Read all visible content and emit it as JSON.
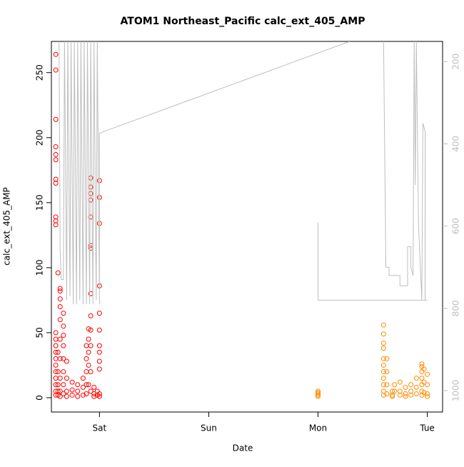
{
  "chart_data": {
    "type": "scatter",
    "title": "ATOM1 Northeast_Pacific calc_ext_405_AMP",
    "x_label": "Date",
    "y_label": "calc_ext_405_AMP",
    "xlim": [
      -0.44,
      3.14
    ],
    "xticks": [
      {
        "value": 0,
        "label": "Sat"
      },
      {
        "value": 1,
        "label": "Sun"
      },
      {
        "value": 2,
        "label": "Mon"
      },
      {
        "value": 3,
        "label": "Tue"
      }
    ],
    "ylim": [
      -11,
      274
    ],
    "yticks": [
      0,
      50,
      100,
      150,
      200,
      250
    ],
    "y2lim": [
      1052,
      151
    ],
    "y2ticks": [
      200,
      400,
      600,
      800,
      1000
    ],
    "series": [
      {
        "color": "#ff0000",
        "x": [
          -0.4,
          -0.4,
          -0.4,
          -0.4,
          -0.4,
          -0.4,
          -0.4,
          -0.4,
          -0.4,
          -0.4,
          -0.4,
          -0.4,
          -0.4,
          -0.4,
          -0.4,
          -0.4,
          -0.4,
          -0.4,
          -0.4,
          -0.4,
          -0.4,
          -0.4,
          -0.38,
          -0.38,
          -0.38,
          -0.38,
          -0.38,
          -0.38,
          -0.36,
          -0.36,
          -0.36,
          -0.36,
          -0.36,
          -0.36,
          -0.36,
          -0.36,
          -0.36,
          -0.36,
          -0.33,
          -0.33,
          -0.33,
          -0.33,
          -0.33,
          -0.33,
          -0.33,
          -0.33,
          -0.3,
          -0.3,
          -0.3,
          -0.3,
          -0.25,
          -0.25,
          -0.25,
          -0.2,
          -0.2,
          -0.2,
          -0.15,
          -0.15,
          -0.15,
          -0.12,
          -0.12,
          -0.12,
          -0.12,
          -0.12,
          -0.1,
          -0.1,
          -0.1,
          -0.1,
          -0.1,
          -0.08,
          -0.08,
          -0.08,
          -0.08,
          -0.08,
          -0.08,
          -0.08,
          -0.08,
          -0.08,
          -0.08,
          -0.08,
          -0.08,
          -0.08,
          -0.05,
          -0.05,
          -0.05,
          -0.02,
          -0.02,
          0,
          0,
          0,
          0,
          0,
          0,
          0,
          0,
          0,
          0,
          0,
          0
        ],
        "values": [
          264,
          252,
          214,
          193,
          187,
          183,
          168,
          165,
          139,
          136,
          133,
          40,
          35,
          30,
          25,
          20,
          15,
          10,
          5,
          2,
          50,
          45,
          96,
          35,
          20,
          10,
          5,
          2,
          84,
          82,
          76,
          70,
          60,
          45,
          30,
          15,
          5,
          1,
          65,
          55,
          48,
          40,
          30,
          20,
          10,
          3,
          28,
          15,
          5,
          1,
          12,
          6,
          2,
          10,
          5,
          1,
          15,
          8,
          2,
          40,
          30,
          20,
          10,
          3,
          53,
          45,
          35,
          25,
          10,
          169,
          162,
          157,
          152,
          139,
          117,
          115,
          80,
          63,
          52,
          40,
          20,
          5,
          8,
          3,
          1,
          5,
          2,
          167,
          154,
          134,
          86,
          65,
          52,
          40,
          35,
          28,
          22,
          3,
          1
        ]
      },
      {
        "color": "#ff8c00",
        "x": [
          2,
          2,
          2,
          2,
          2,
          2.6,
          2.6,
          2.6,
          2.6,
          2.6,
          2.6,
          2.6,
          2.6,
          2.6,
          2.6,
          2.6,
          2.63,
          2.63,
          2.63,
          2.63,
          2.68,
          2.68,
          2.68,
          2.7,
          2.7,
          2.75,
          2.75,
          2.75,
          2.8,
          2.8,
          2.8,
          2.85,
          2.85,
          2.85,
          2.9,
          2.9,
          2.9,
          2.95,
          2.95,
          2.95,
          2.95,
          2.95,
          2.95,
          2.95,
          2.97,
          2.97,
          2.97,
          3,
          3,
          3,
          3
        ],
        "values": [
          5,
          4,
          3,
          2,
          1,
          56,
          49,
          42,
          38,
          30,
          25,
          20,
          15,
          10,
          5,
          2,
          30,
          20,
          10,
          3,
          5,
          2,
          1,
          10,
          5,
          12,
          5,
          2,
          8,
          3,
          1,
          10,
          5,
          2,
          15,
          8,
          3,
          26,
          24,
          20,
          15,
          10,
          5,
          2,
          22,
          12,
          4,
          18,
          10,
          3,
          1
        ]
      },
      {
        "color": "#bebebe",
        "axis": "y2",
        "mode": "line",
        "x": [
          -0.37,
          -0.36,
          -0.35,
          -0.33,
          -0.32,
          -0.3,
          -0.29,
          -0.27,
          -0.26,
          -0.24,
          -0.23,
          -0.21,
          -0.2,
          -0.18,
          -0.17,
          -0.15,
          -0.14,
          -0.12,
          -0.11,
          -0.09,
          -0.08,
          -0.06,
          -0.05,
          -0.03,
          -0.02,
          0,
          0,
          2.29,
          2.29,
          2,
          2,
          3,
          3,
          2.6,
          2.62,
          2.62,
          2.65,
          2.65,
          2.75,
          2.75,
          2.82,
          2.82,
          2.85,
          2.85,
          2.87,
          2.88,
          2.89,
          2.9,
          2.92,
          2.95,
          2.96,
          2.98,
          2.98
        ],
        "values": [
          151,
          660,
          730,
          730,
          151,
          780,
          151,
          770,
          151,
          790,
          151,
          790,
          151,
          780,
          151,
          790,
          151,
          790,
          151,
          790,
          151,
          790,
          151,
          780,
          151,
          790,
          374,
          151,
          null,
          591,
          780,
          780,
          null,
          151,
          676,
          700,
          700,
          720,
          720,
          745,
          745,
          650,
          650,
          700,
          720,
          151,
          500,
          151,
          600,
          780,
          350,
          370,
          780
        ]
      }
    ]
  }
}
